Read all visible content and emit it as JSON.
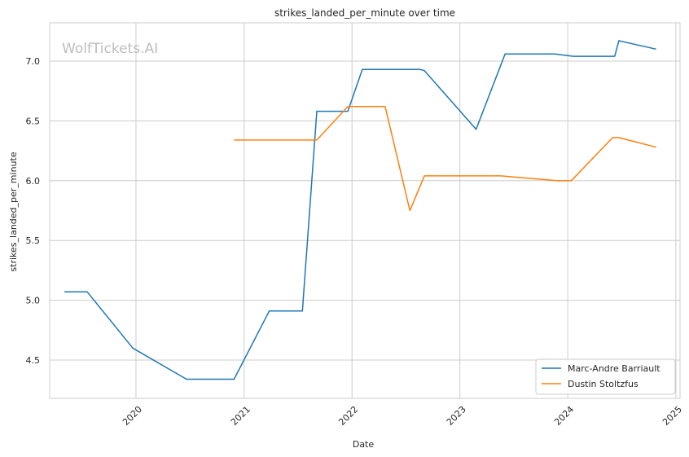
{
  "chart_data": {
    "type": "line",
    "title": "strikes_landed_per_minute over time",
    "xlabel": "Date",
    "ylabel": "strikes_landed_per_minute",
    "watermark": "WolfTickets.AI",
    "x_ticks": [
      "2020",
      "2021",
      "2022",
      "2023",
      "2024",
      "2025"
    ],
    "y_ticks": [
      "4.5",
      "5.0",
      "5.5",
      "6.0",
      "6.5",
      "7.0"
    ],
    "xlim": [
      "2019-03-15",
      "2025-01-15"
    ],
    "ylim": [
      4.18,
      7.32
    ],
    "grid": true,
    "legend_position": "lower-right",
    "series": [
      {
        "name": "Marc-Andre Barriault",
        "color": "#1f77b4",
        "points": [
          [
            "2019-05-04",
            5.07
          ],
          [
            "2019-07-20",
            5.07
          ],
          [
            "2019-12-21",
            4.6
          ],
          [
            "2020-06-20",
            4.34
          ],
          [
            "2020-11-28",
            4.34
          ],
          [
            "2021-03-27",
            4.91
          ],
          [
            "2021-07-17",
            4.91
          ],
          [
            "2021-09-04",
            6.58
          ],
          [
            "2021-12-18",
            6.58
          ],
          [
            "2022-02-05",
            6.93
          ],
          [
            "2022-08-20",
            6.93
          ],
          [
            "2022-09-03",
            6.92
          ],
          [
            "2023-02-25",
            6.43
          ],
          [
            "2023-06-03",
            7.06
          ],
          [
            "2023-11-18",
            7.06
          ],
          [
            "2024-01-20",
            7.04
          ],
          [
            "2024-06-08",
            7.04
          ],
          [
            "2024-06-22",
            7.17
          ],
          [
            "2024-10-26",
            7.1
          ]
        ]
      },
      {
        "name": "Dustin Stoltzfus",
        "color": "#ff7f0e",
        "points": [
          [
            "2020-11-28",
            6.34
          ],
          [
            "2021-09-04",
            6.34
          ],
          [
            "2021-12-18",
            6.62
          ],
          [
            "2022-04-23",
            6.62
          ],
          [
            "2022-07-16",
            5.75
          ],
          [
            "2022-09-03",
            6.04
          ],
          [
            "2023-05-20",
            6.04
          ],
          [
            "2023-11-25",
            6.0
          ],
          [
            "2024-01-13",
            6.0
          ],
          [
            "2024-06-01",
            6.36
          ],
          [
            "2024-06-22",
            6.36
          ],
          [
            "2024-10-26",
            6.28
          ]
        ]
      }
    ]
  }
}
